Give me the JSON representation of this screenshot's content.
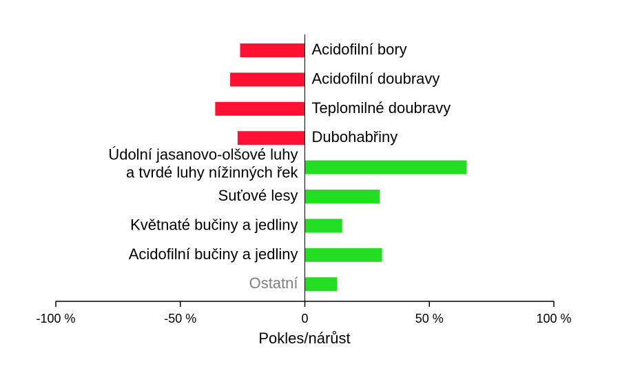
{
  "chart_data": {
    "type": "bar",
    "orientation": "horizontal",
    "categories": [
      "Acidofilní bory",
      "Acidofilní doubravy",
      "Teplomilné doubravy",
      "Dubohabřiny",
      "Údolní jasanovo-olšové luhy\na tvrdé luhy nížinných řek",
      "Suťové lesy",
      "Květnaté bučiny a jedliny",
      "Acidofilní bučiny a jedliny",
      "Ostatní"
    ],
    "values": [
      -26,
      -30,
      -36,
      -27,
      65,
      30,
      15,
      31,
      13
    ],
    "colors": [
      "#ff1133",
      "#ff1133",
      "#ff1133",
      "#ff1133",
      "#22dd22",
      "#22dd22",
      "#22dd22",
      "#22dd22",
      "#22dd22"
    ],
    "label_colors": [
      "#000000",
      "#000000",
      "#000000",
      "#000000",
      "#000000",
      "#000000",
      "#000000",
      "#000000",
      "#808080"
    ],
    "xlabel": "Pokles/nárůst",
    "xlim": [
      -100,
      100
    ],
    "xticks": [
      {
        "value": -100,
        "label": "-100 %"
      },
      {
        "value": -50,
        "label": "-50 %"
      },
      0,
      {
        "value": 50,
        "label": "50 %"
      },
      {
        "value": 100,
        "label": "100 %"
      }
    ],
    "grid": false
  }
}
